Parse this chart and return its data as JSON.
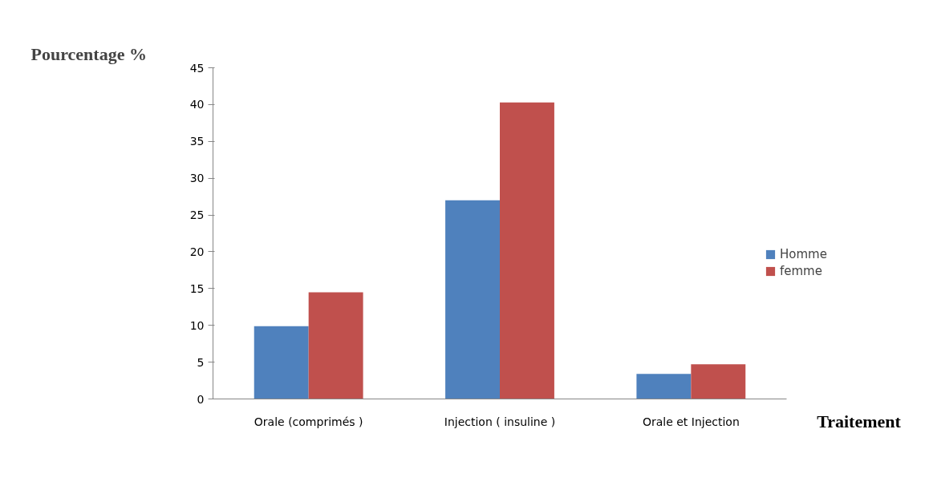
{
  "chart_data": {
    "type": "bar",
    "ylabel": "Pourcentage %",
    "xlabel": "Traitement",
    "categories": [
      "Orale (comprimés )",
      "Injection ( insuline )",
      "Orale et Injection"
    ],
    "series": [
      {
        "name": "Homme",
        "color": "#4f81bd",
        "values": [
          9.9,
          27.0,
          3.4
        ]
      },
      {
        "name": "femme",
        "color": "#c0504d",
        "values": [
          14.5,
          40.3,
          4.7
        ]
      }
    ],
    "ylim": [
      0,
      45
    ],
    "yticks": [
      0,
      5,
      10,
      15,
      20,
      25,
      30,
      35,
      40,
      45
    ],
    "grid": false,
    "legend": "right"
  }
}
